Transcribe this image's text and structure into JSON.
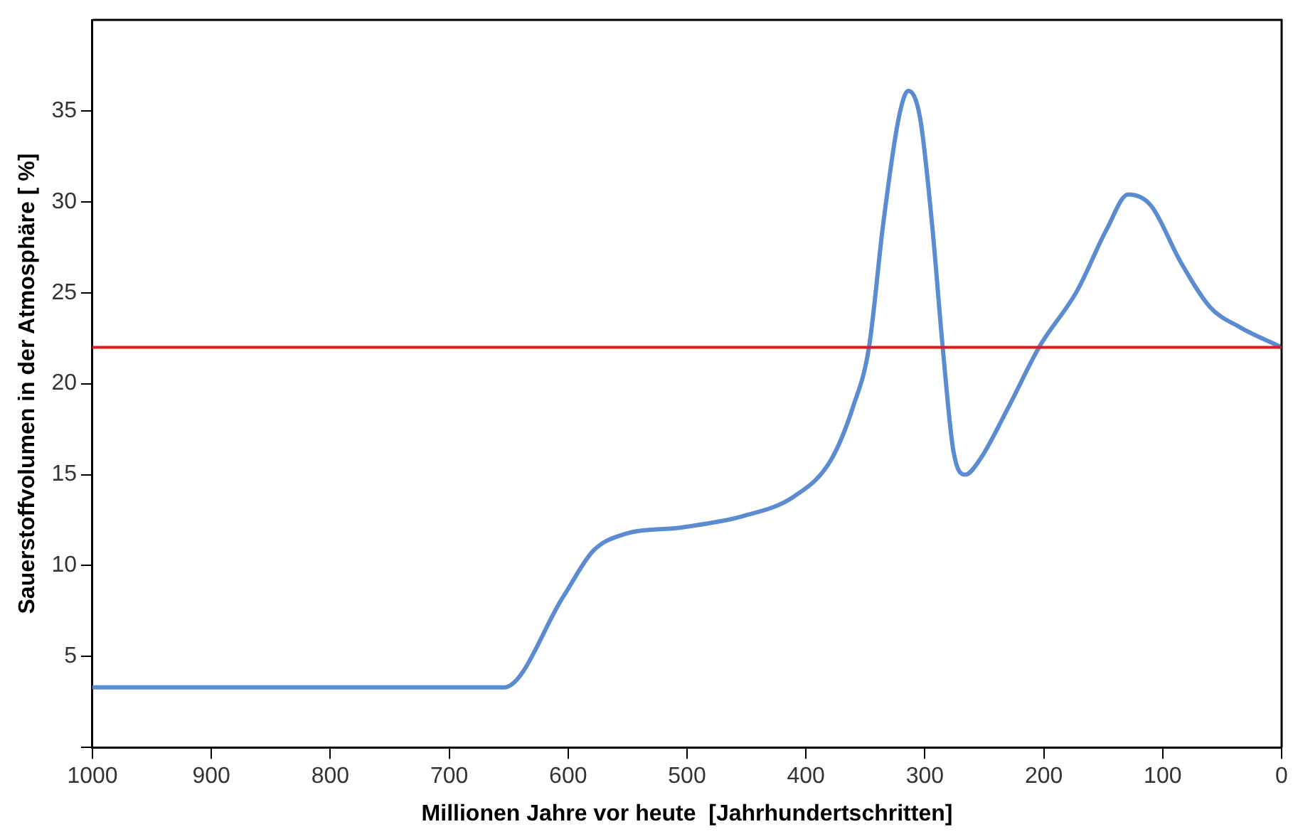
{
  "chart_data": {
    "type": "line",
    "xlabel": "Millionen Jahre vor heute  [Jahrhundertschritten]",
    "ylabel": "Sauerstoffvolumen in der Atmosphäre [ %]",
    "xlim": [
      1000,
      0
    ],
    "xticks": [
      1000,
      900,
      800,
      700,
      600,
      500,
      400,
      300,
      200,
      100,
      0
    ],
    "ylim": [
      0,
      40
    ],
    "yticks": [
      {
        "value": 0,
        "label": null
      },
      5,
      10,
      15,
      20,
      25,
      30,
      35
    ],
    "grid": false,
    "legend": false,
    "marker": "none",
    "line_style": "solid",
    "ref_lines": [
      {
        "axis": "y",
        "value": 22,
        "color": "#e31a1c"
      }
    ],
    "series": [
      {
        "color": "#5b8bd0",
        "x": [
          1000,
          654,
          604,
          579,
          554,
          504,
          454,
          410,
          379,
          360,
          347,
          335,
          322,
          314,
          304,
          294,
          285,
          276,
          266,
          254,
          229,
          204,
          172,
          147,
          129,
          110,
          85,
          60,
          35,
          0
        ],
        "values": [
          3.3,
          3.3,
          8.3,
          10.8,
          11.7,
          12.1,
          12.7,
          13.8,
          15.8,
          18.8,
          22,
          28.8,
          34.6,
          36.1,
          34.6,
          28.8,
          22,
          16.3,
          15,
          15.8,
          18.8,
          22,
          25.1,
          28.5,
          30.4,
          29.8,
          26.7,
          24.2,
          23.1,
          22
        ]
      }
    ]
  }
}
